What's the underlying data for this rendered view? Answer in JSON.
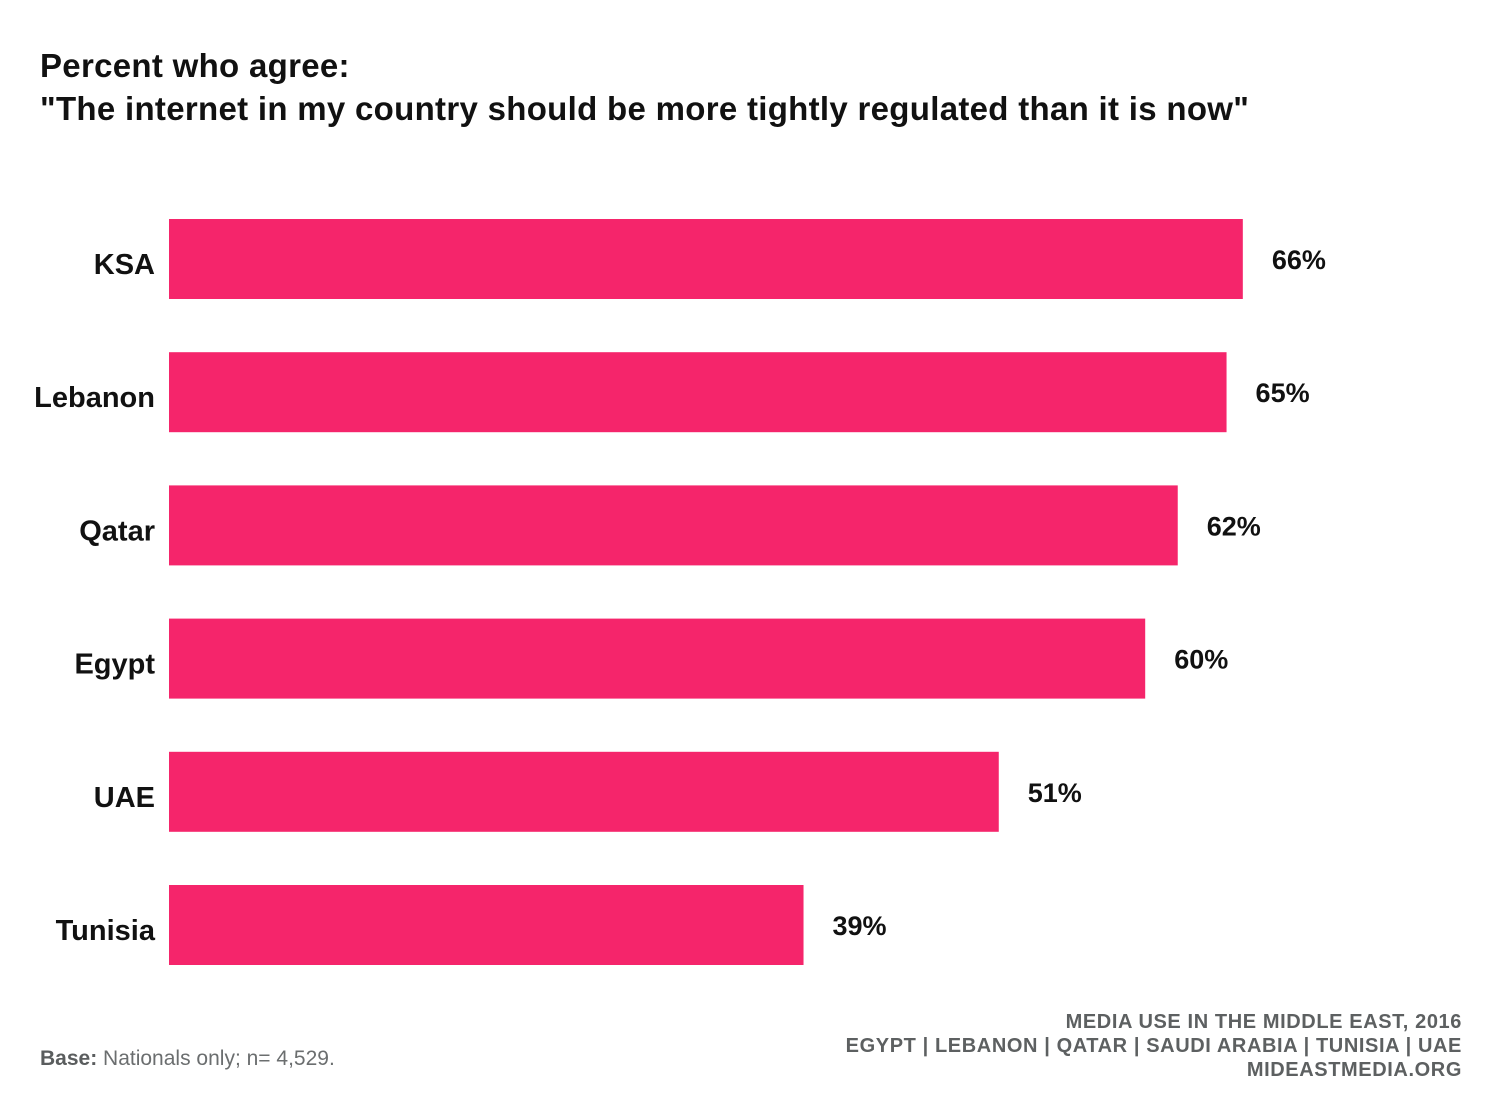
{
  "title": {
    "line1": "Percent who agree:",
    "line2": "\"The internet in my country should be more tightly regulated than it is now\""
  },
  "colors": {
    "bar": "#f5256b",
    "text": "#111111",
    "footer": "#5d6061"
  },
  "chart_data": {
    "type": "bar",
    "orientation": "horizontal",
    "categories": [
      "KSA",
      "Lebanon",
      "Qatar",
      "Egypt",
      "UAE",
      "Tunisia"
    ],
    "values": [
      66,
      65,
      62,
      60,
      51,
      39
    ],
    "value_labels": [
      "66%",
      "65%",
      "62%",
      "60%",
      "51%",
      "39%"
    ],
    "unit": "%",
    "title": "Percent who agree: \"The internet in my country should be more tightly regulated than it is now\"",
    "xlabel": "",
    "ylabel": "",
    "grid": false,
    "legend": "none"
  },
  "footer": {
    "base_label": "Base:",
    "base_text": " Nationals only; n= 4,529.",
    "source_line1": "MEDIA USE IN THE MIDDLE EAST, 2016",
    "source_line2": "EGYPT | LEBANON | QATAR | SAUDI ARABIA | TUNISIA | UAE",
    "source_line3": "MIDEASTMEDIA.ORG"
  }
}
